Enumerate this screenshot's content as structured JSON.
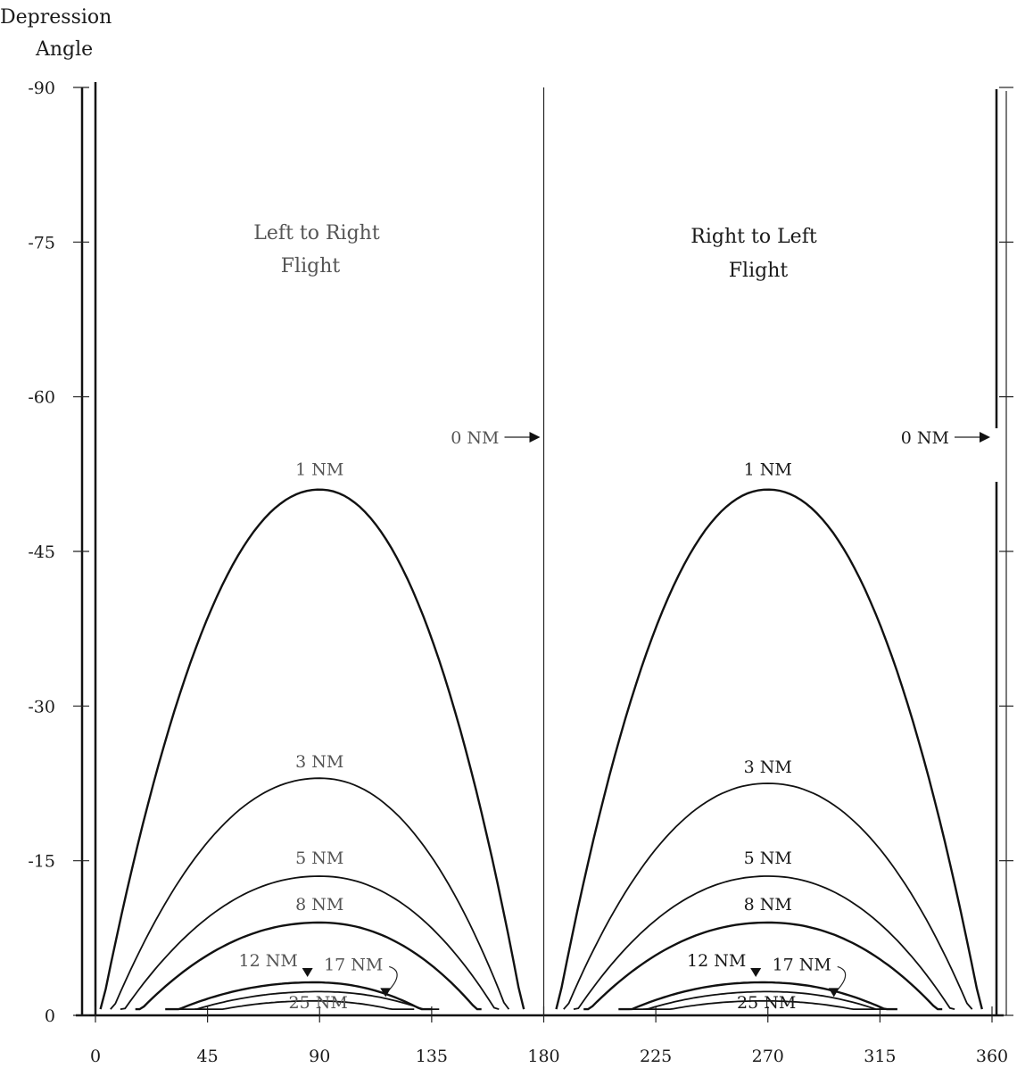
{
  "chart_data": {
    "type": "line",
    "title": "",
    "ylabel": "Depression Angle",
    "xlabel": "",
    "xlim": [
      0,
      360
    ],
    "ylim": [
      -90,
      0
    ],
    "y_inverted": true,
    "grid": false,
    "x_ticks": [
      "0",
      "45",
      "90",
      "135",
      "180",
      "225",
      "270",
      "315",
      "360"
    ],
    "x_tick_values": [
      0,
      45,
      90,
      135,
      180,
      225,
      270,
      315,
      360
    ],
    "y_ticks": [
      "-90",
      "-75",
      "-60",
      "-45",
      "-30",
      "-15",
      "0"
    ],
    "y_tick_values": [
      -90,
      -75,
      -60,
      -45,
      -30,
      -15,
      0
    ],
    "panels": [
      {
        "title": [
          "Left to Right",
          "Flight"
        ],
        "x_range": [
          0,
          180
        ],
        "zero_nm_label": "0 NM",
        "series": [
          {
            "name": "1 NM",
            "peak_x": 90,
            "peak_depression": 51,
            "x_start": 2,
            "x_end": 172
          },
          {
            "name": "3 NM",
            "peak_x": 90,
            "peak_depression": 23,
            "x_start": 6,
            "x_end": 166
          },
          {
            "name": "5 NM",
            "peak_x": 90,
            "peak_depression": 13.5,
            "x_start": 10,
            "x_end": 162
          },
          {
            "name": "8 NM",
            "peak_x": 90,
            "peak_depression": 9,
            "x_start": 16,
            "x_end": 155
          },
          {
            "name": "12 NM",
            "peak_x": 88,
            "peak_depression": 3.2,
            "x_start": 28,
            "x_end": 135
          },
          {
            "name": "17 NM",
            "peak_x": 90,
            "peak_depression": 2.3,
            "x_start": 33,
            "x_end": 138
          },
          {
            "name": "25 NM",
            "peak_x": 88,
            "peak_depression": 1.4,
            "x_start": 40,
            "x_end": 128
          }
        ]
      },
      {
        "title": [
          "Right to Left",
          "Flight"
        ],
        "x_range": [
          180,
          360
        ],
        "zero_nm_label": "0 NM",
        "series": [
          {
            "name": "1 NM",
            "peak_x": 270,
            "peak_depression": 51,
            "x_start": 185,
            "x_end": 356
          },
          {
            "name": "3 NM",
            "peak_x": 270,
            "peak_depression": 22.5,
            "x_start": 188,
            "x_end": 352
          },
          {
            "name": "5 NM",
            "peak_x": 270,
            "peak_depression": 13.5,
            "x_start": 192,
            "x_end": 345
          },
          {
            "name": "8 NM",
            "peak_x": 270,
            "peak_depression": 9,
            "x_start": 196,
            "x_end": 340
          },
          {
            "name": "12 NM",
            "peak_x": 268,
            "peak_depression": 3.2,
            "x_start": 210,
            "x_end": 322
          },
          {
            "name": "17 NM",
            "peak_x": 270,
            "peak_depression": 2.3,
            "x_start": 214,
            "x_end": 320
          },
          {
            "name": "25 NM",
            "peak_x": 268,
            "peak_depression": 1.4,
            "x_start": 220,
            "x_end": 315
          }
        ]
      }
    ]
  }
}
